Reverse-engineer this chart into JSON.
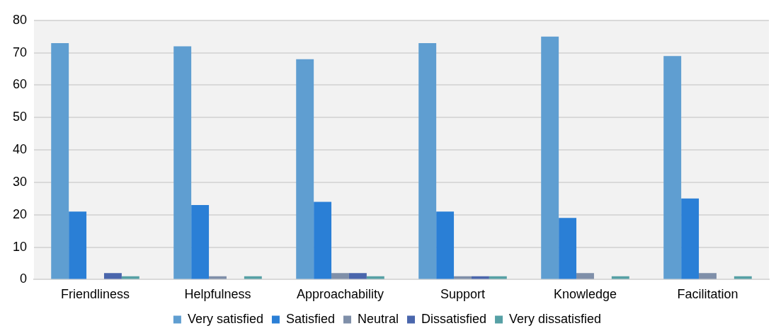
{
  "chart_data": {
    "type": "bar",
    "categories": [
      "Friendliness",
      "Helpfulness",
      "Approachability",
      "Support",
      "Knowledge",
      "Facilitation"
    ],
    "series": [
      {
        "name": "Very satisfied",
        "color": "#5f9ed1",
        "values": [
          73,
          72,
          68,
          73,
          75,
          69
        ]
      },
      {
        "name": "Satisfied",
        "color": "#2a7fd6",
        "values": [
          21,
          23,
          24,
          21,
          19,
          25
        ]
      },
      {
        "name": "Neutral",
        "color": "#7f8fa9",
        "values": [
          0,
          1,
          2,
          1,
          2,
          2
        ]
      },
      {
        "name": "Dissatisfied",
        "color": "#4a66ac",
        "values": [
          2,
          0,
          2,
          1,
          0,
          0
        ]
      },
      {
        "name": "Very dissatisfied",
        "color": "#56a0a5",
        "values": [
          1,
          1,
          1,
          1,
          1,
          1
        ]
      }
    ],
    "ylim": [
      0,
      80
    ],
    "yticks": [
      0,
      10,
      20,
      30,
      40,
      50,
      60,
      70,
      80
    ],
    "grid": "y",
    "legend": "bottom"
  }
}
